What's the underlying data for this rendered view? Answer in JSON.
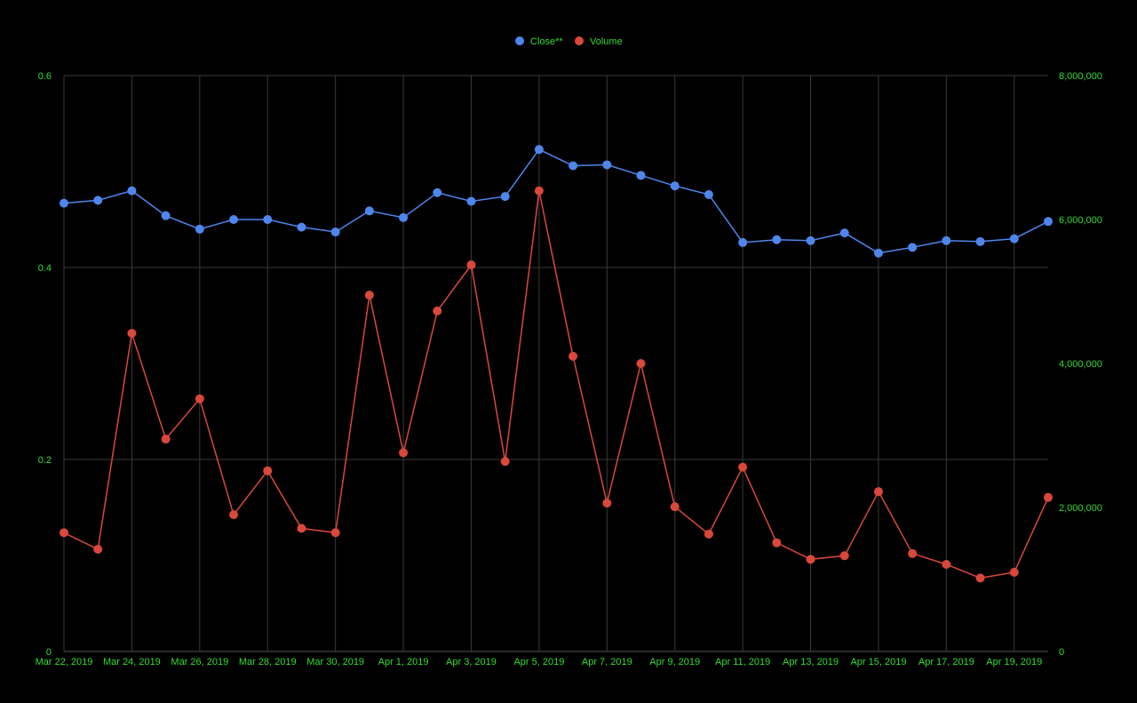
{
  "colors": {
    "background": "#000000",
    "grid": "#3a3a3a",
    "tick_text": "#33dd33",
    "close_series": "#4f86ec",
    "volume_series": "#d9483b"
  },
  "chart_data": {
    "type": "line",
    "x": [
      "Mar 22, 2019",
      "Mar 23, 2019",
      "Mar 24, 2019",
      "Mar 25, 2019",
      "Mar 26, 2019",
      "Mar 27, 2019",
      "Mar 28, 2019",
      "Mar 29, 2019",
      "Mar 30, 2019",
      "Mar 31, 2019",
      "Apr 1, 2019",
      "Apr 2, 2019",
      "Apr 3, 2019",
      "Apr 4, 2019",
      "Apr 5, 2019",
      "Apr 6, 2019",
      "Apr 7, 2019",
      "Apr 8, 2019",
      "Apr 9, 2019",
      "Apr 10, 2019",
      "Apr 11, 2019",
      "Apr 12, 2019",
      "Apr 13, 2019",
      "Apr 14, 2019",
      "Apr 15, 2019",
      "Apr 16, 2019",
      "Apr 17, 2019",
      "Apr 18, 2019",
      "Apr 19, 2019",
      "Apr 20, 2019"
    ],
    "x_tick_labels": [
      "Mar 22, 2019",
      "Mar 24, 2019",
      "Mar 26, 2019",
      "Mar 28, 2019",
      "Mar 30, 2019",
      "Apr 1, 2019",
      "Apr 3, 2019",
      "Apr 5, 2019",
      "Apr 7, 2019",
      "Apr 9, 2019",
      "Apr 11, 2019",
      "Apr 13, 2019",
      "Apr 15, 2019",
      "Apr 17, 2019",
      "Apr 19, 2019"
    ],
    "series": [
      {
        "name": "Close**",
        "axis": "left",
        "values": [
          0.467,
          0.47,
          0.48,
          0.454,
          0.44,
          0.45,
          0.45,
          0.442,
          0.437,
          0.459,
          0.452,
          0.478,
          0.469,
          0.474,
          0.523,
          0.506,
          0.507,
          0.496,
          0.485,
          0.476,
          0.426,
          0.429,
          0.428,
          0.436,
          0.415,
          0.421,
          0.428,
          0.427,
          0.43,
          0.448
        ]
      },
      {
        "name": "Volume",
        "axis": "right",
        "values": [
          1650000,
          1420000,
          4420000,
          2950000,
          3510000,
          1900000,
          2510000,
          1710000,
          1650000,
          4950000,
          2760000,
          4730000,
          5370000,
          2640000,
          6400000,
          4100000,
          2060000,
          4000000,
          2010000,
          1630000,
          2560000,
          1510000,
          1280000,
          1330000,
          2220000,
          1360000,
          1210000,
          1020000,
          1100000,
          2140000
        ]
      }
    ],
    "y_left": {
      "ticks": [
        "0",
        "0.2",
        "0.4",
        "0.6"
      ],
      "ylim": [
        0,
        0.6
      ]
    },
    "y_right": {
      "ticks": [
        "0",
        "2,000,000",
        "4,000,000",
        "6,000,000",
        "8,000,000"
      ],
      "ylim": [
        0,
        8000000
      ]
    },
    "legend": {
      "placement": "top-center",
      "entries": [
        "Close**",
        "Volume"
      ]
    },
    "grid": true
  }
}
